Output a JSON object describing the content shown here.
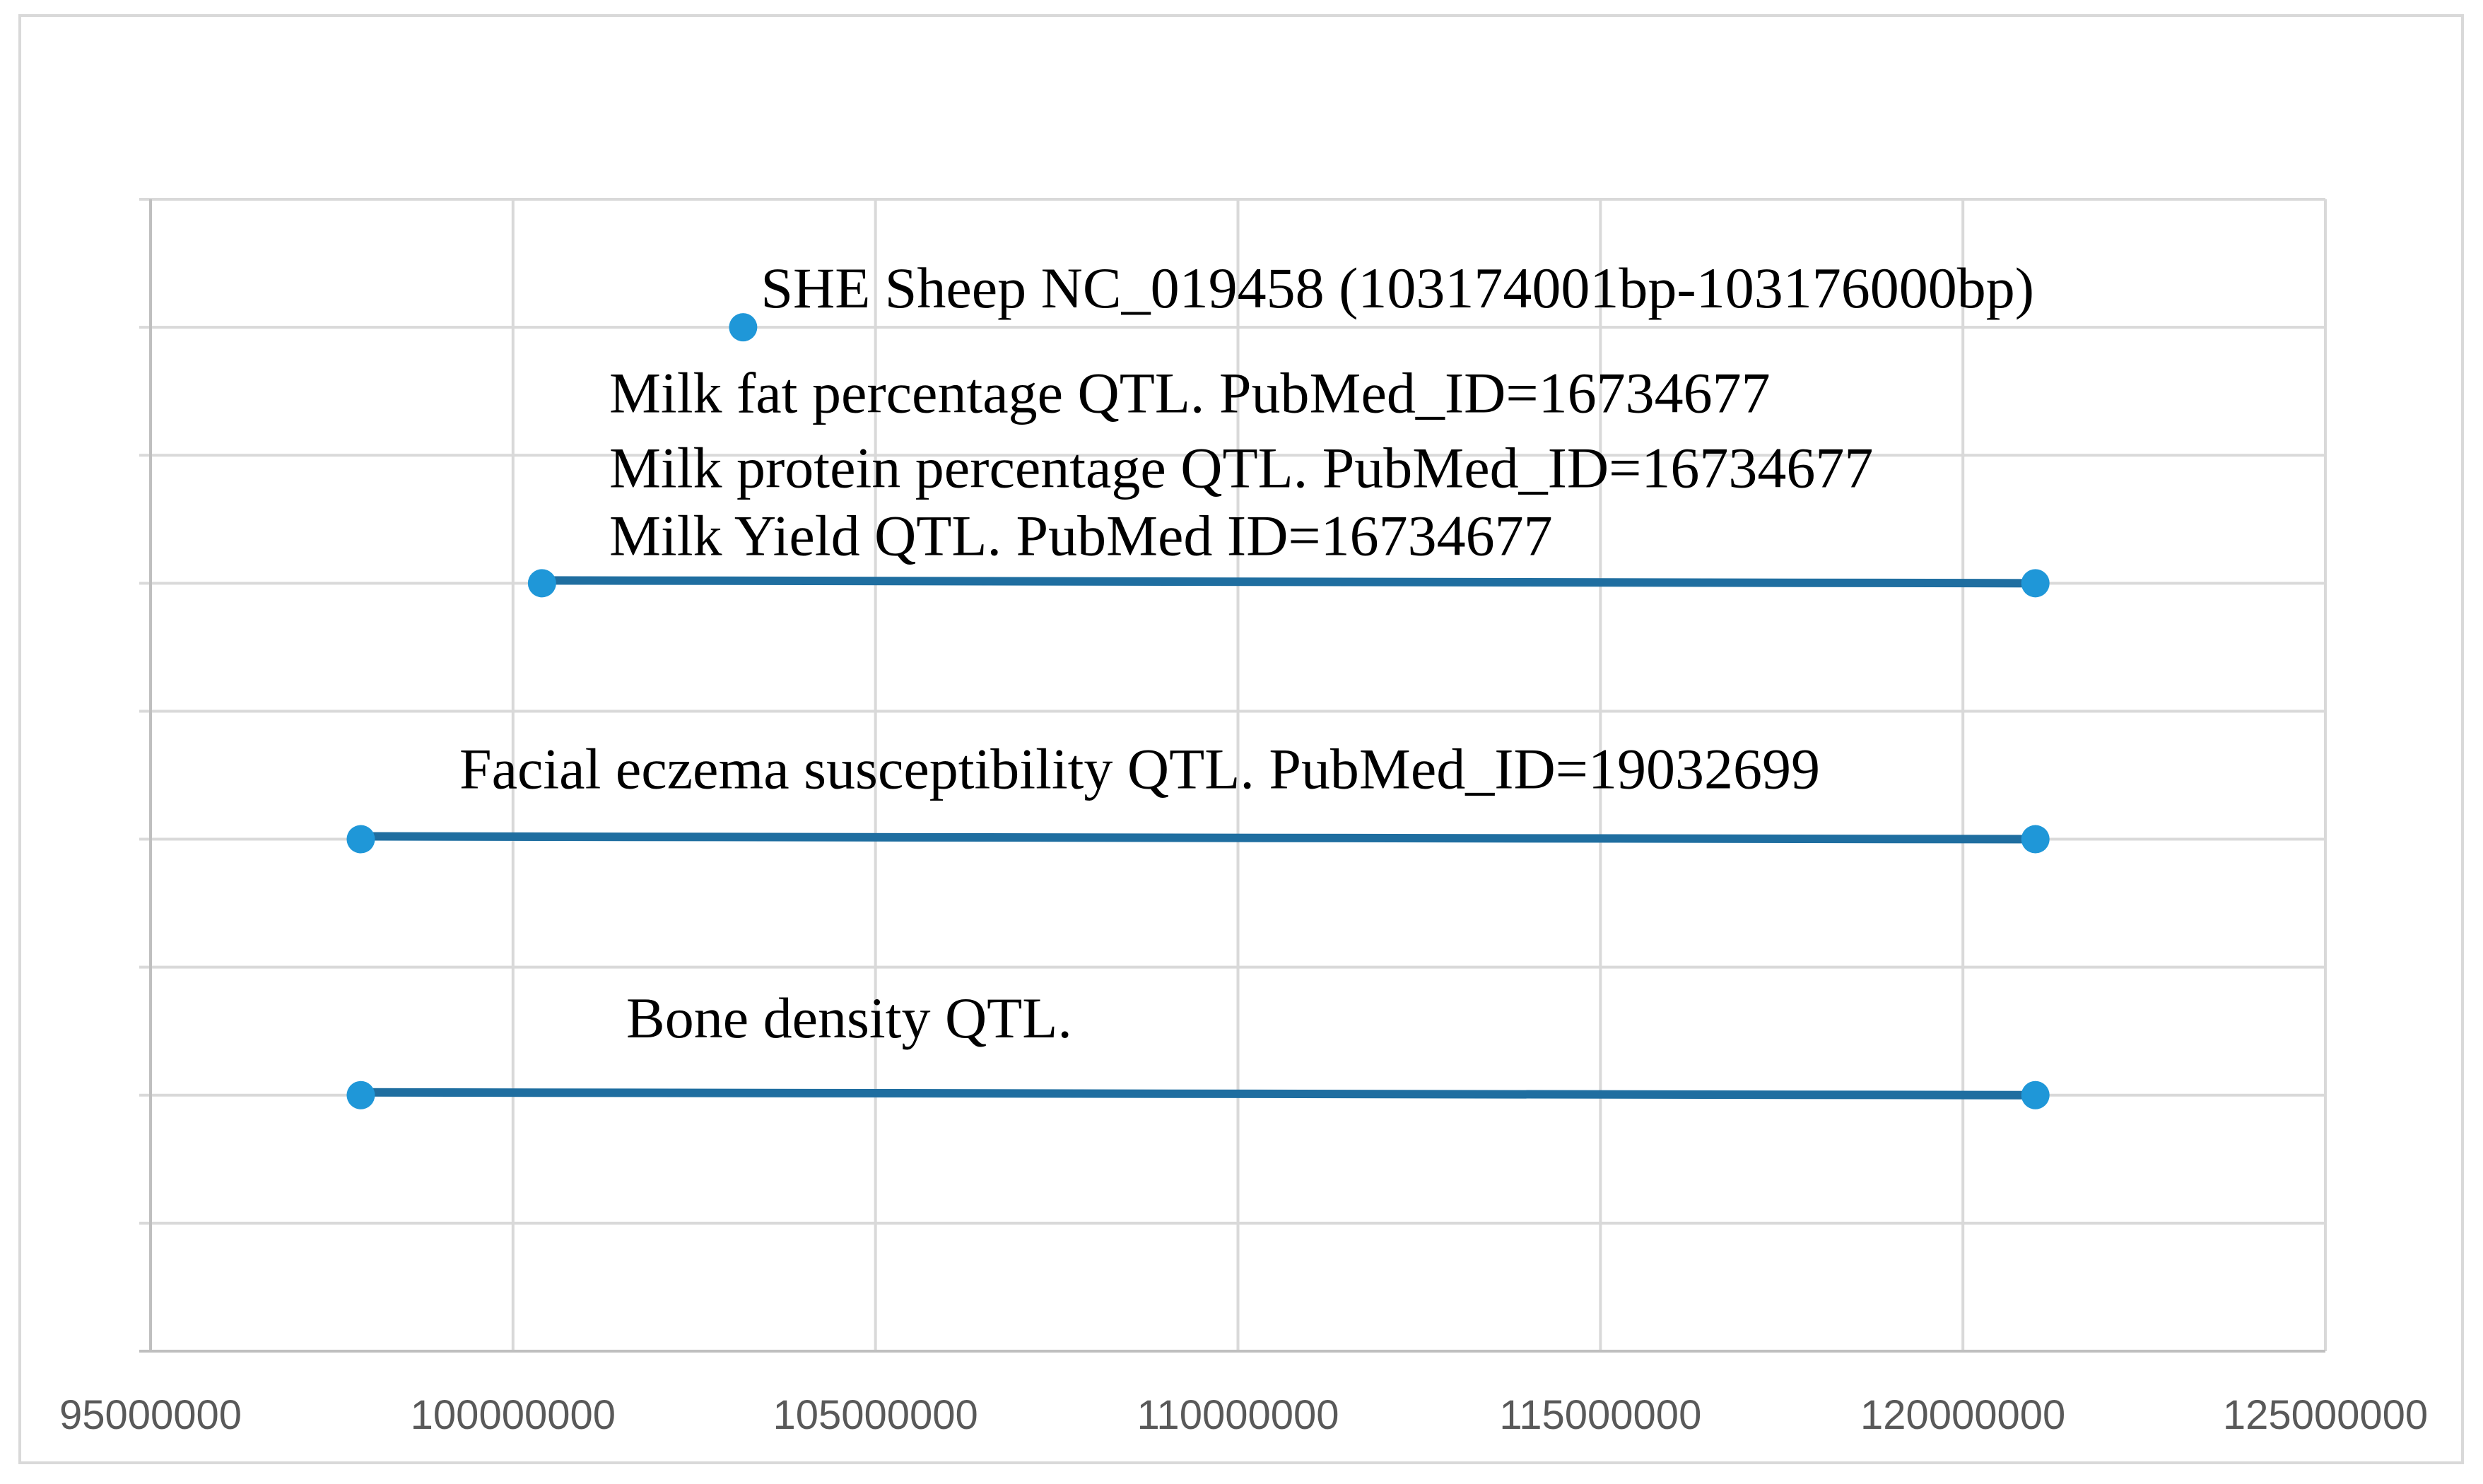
{
  "chart_data": {
    "type": "scatter",
    "title": "",
    "xlabel": "",
    "ylabel": "",
    "xlim": [
      95000000,
      125000000
    ],
    "ylim": [
      0,
      9
    ],
    "x_ticks": [
      95000000,
      100000000,
      105000000,
      110000000,
      115000000,
      120000000,
      125000000
    ],
    "x_tick_labels": [
      "95000000",
      "100000000",
      "105000000",
      "110000000",
      "115000000",
      "120000000",
      "125000000"
    ],
    "grid": true,
    "legend": "none",
    "line_color": "#1f6ea0",
    "marker_color": "#1f97d8",
    "series": [
      {
        "points": [
          [
            103174001,
            8
          ]
        ],
        "annotations": [
          "SHE  Sheep  NC_019458 (103174001bp-103176000bp)"
        ]
      },
      {
        "points": [
          [
            100400000,
            6
          ],
          [
            121000000,
            6
          ]
        ],
        "annotations": [
          "Milk fat percentage QTL.  PubMed_ID=16734677",
          "Milk protein percentage QTL.  PubMed_ID=16734677",
          "Milk Yield QTL.  PubMed  ID=16734677"
        ]
      },
      {
        "points": [
          [
            97900000,
            4
          ],
          [
            121000000,
            4
          ]
        ],
        "annotations": [
          "Facial eczema susceptibility QTL.  PubMed_ID=19032699"
        ]
      },
      {
        "points": [
          [
            97900000,
            2
          ],
          [
            121000000,
            2
          ]
        ],
        "annotations": [
          "Bone density QTL."
        ]
      }
    ]
  }
}
